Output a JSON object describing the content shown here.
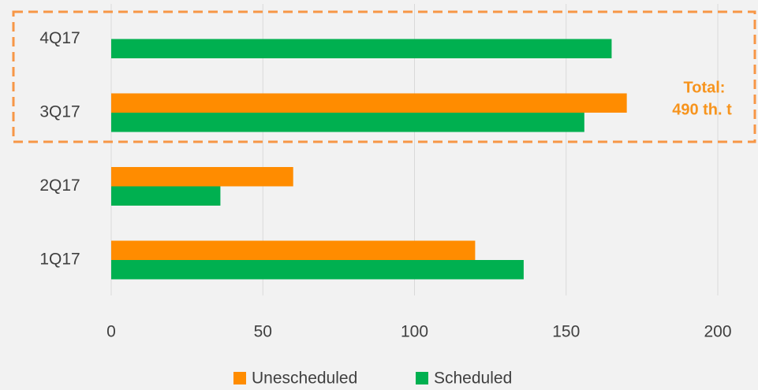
{
  "chart_data": {
    "type": "hbar",
    "categories": [
      "1Q17",
      "2Q17",
      "3Q17",
      "4Q17"
    ],
    "series": [
      {
        "name": "Unescheduled",
        "color": "#ff8c00",
        "values": [
          120,
          60,
          170,
          null
        ]
      },
      {
        "name": "Scheduled",
        "color": "#00b050",
        "values": [
          136,
          36,
          156,
          165
        ]
      }
    ],
    "xlim": [
      0,
      200
    ],
    "xticks": [
      0,
      50,
      100,
      150,
      200
    ],
    "grid": true,
    "legend": "bottom",
    "annotations": [
      "Total:",
      "490 th. t"
    ]
  }
}
